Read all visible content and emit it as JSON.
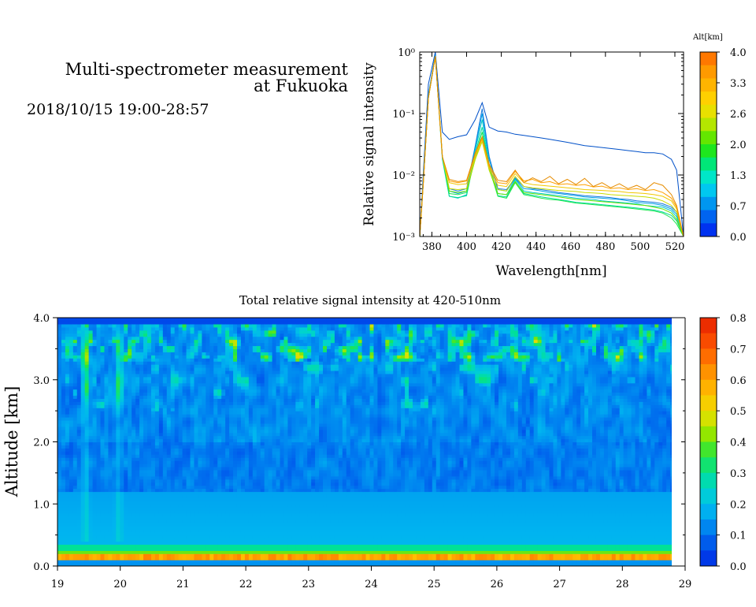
{
  "header": {
    "title_line1": "Multi-spectrometer measurement",
    "title_line2": "at Fukuoka",
    "datetime": "2018/10/15 19:00-28:57"
  },
  "chart_data": [
    {
      "type": "line",
      "xlabel": "Wavelength[nm]",
      "ylabel": "Relative signal intensity",
      "xlim": [
        373,
        525
      ],
      "ylim": [
        0.001,
        1
      ],
      "yscale": "log",
      "x_ticks": [
        "380",
        "400",
        "420",
        "440",
        "460",
        "480",
        "500",
        "520"
      ],
      "y_ticks": [
        "10⁻³",
        "10⁻²",
        "10⁻¹",
        "10⁰"
      ],
      "colorbar": {
        "title": "Alt[km]",
        "ticks": [
          "4.0",
          "3.3",
          "2.6",
          "2.0",
          "1.3",
          "0.7",
          "0.0"
        ],
        "colors": [
          "#ff7800",
          "#ff9a00",
          "#ffb400",
          "#ffd000",
          "#e8e000",
          "#b4e600",
          "#64e600",
          "#1ee61e",
          "#00e678",
          "#00e6c8",
          "#00c8f0",
          "#0096f0",
          "#0064f0",
          "#0032f0"
        ]
      },
      "x": [
        373,
        375,
        378,
        382,
        386,
        390,
        395,
        400,
        405,
        409,
        413,
        418,
        423,
        428,
        433,
        438,
        443,
        448,
        453,
        458,
        463,
        468,
        473,
        478,
        483,
        488,
        493,
        498,
        503,
        508,
        513,
        518,
        521,
        525
      ],
      "series": [
        {
          "alt": 0.15,
          "color": "#0050c8",
          "values": [
            0.001,
            0.01,
            0.3,
            1.0,
            0.05,
            0.038,
            0.042,
            0.045,
            0.08,
            0.15,
            0.06,
            0.052,
            0.05,
            0.046,
            0.044,
            0.042,
            0.04,
            0.038,
            0.036,
            0.034,
            0.032,
            0.03,
            0.029,
            0.028,
            0.027,
            0.026,
            0.025,
            0.024,
            0.023,
            0.023,
            0.022,
            0.018,
            0.012,
            0.001
          ]
        },
        {
          "alt": 0.3,
          "color": "#1478dc",
          "values": [
            0.001,
            0.008,
            0.2,
            0.9,
            0.02,
            0.006,
            0.0055,
            0.006,
            0.03,
            0.12,
            0.02,
            0.006,
            0.0058,
            0.009,
            0.0065,
            0.006,
            0.0058,
            0.0055,
            0.0052,
            0.005,
            0.0048,
            0.0046,
            0.0045,
            0.0044,
            0.0043,
            0.0041,
            0.004,
            0.0038,
            0.0037,
            0.0036,
            0.0034,
            0.003,
            0.0025,
            0.001
          ]
        },
        {
          "alt": 0.7,
          "color": "#00a0e6",
          "values": [
            0.001,
            0.008,
            0.2,
            0.9,
            0.02,
            0.0055,
            0.005,
            0.0055,
            0.028,
            0.1,
            0.018,
            0.0058,
            0.0055,
            0.0088,
            0.006,
            0.0058,
            0.0055,
            0.0052,
            0.005,
            0.0048,
            0.0046,
            0.0044,
            0.0043,
            0.0042,
            0.0041,
            0.004,
            0.0038,
            0.0036,
            0.0035,
            0.0034,
            0.0032,
            0.0028,
            0.0023,
            0.001
          ]
        },
        {
          "alt": 1.0,
          "color": "#00c8c8",
          "values": [
            0.001,
            0.007,
            0.18,
            0.85,
            0.018,
            0.0045,
            0.0042,
            0.0048,
            0.025,
            0.08,
            0.015,
            0.005,
            0.0048,
            0.0085,
            0.0055,
            0.0052,
            0.005,
            0.0048,
            0.0046,
            0.0044,
            0.0042,
            0.0041,
            0.004,
            0.0038,
            0.0037,
            0.0036,
            0.0035,
            0.0034,
            0.0032,
            0.0031,
            0.003,
            0.0026,
            0.0021,
            0.001
          ]
        },
        {
          "alt": 1.3,
          "color": "#00dc96",
          "values": [
            0.001,
            0.007,
            0.18,
            0.85,
            0.02,
            0.0045,
            0.0043,
            0.0046,
            0.022,
            0.06,
            0.014,
            0.0046,
            0.0044,
            0.008,
            0.005,
            0.0047,
            0.0044,
            0.0042,
            0.004,
            0.0038,
            0.0036,
            0.0035,
            0.0034,
            0.0033,
            0.0032,
            0.0031,
            0.003,
            0.0029,
            0.0028,
            0.0027,
            0.0025,
            0.0022,
            0.0018,
            0.001
          ]
        },
        {
          "alt": 1.7,
          "color": "#1ee650",
          "values": [
            0.001,
            0.007,
            0.18,
            0.85,
            0.02,
            0.005,
            0.0048,
            0.0052,
            0.02,
            0.05,
            0.013,
            0.0045,
            0.0042,
            0.0075,
            0.0048,
            0.0045,
            0.0042,
            0.004,
            0.0039,
            0.0037,
            0.0035,
            0.0034,
            0.0033,
            0.0032,
            0.0031,
            0.003,
            0.0029,
            0.0028,
            0.0027,
            0.0026,
            0.0024,
            0.002,
            0.0016,
            0.001
          ]
        },
        {
          "alt": 2.0,
          "color": "#64e600",
          "values": [
            0.001,
            0.007,
            0.18,
            0.85,
            0.02,
            0.0055,
            0.0052,
            0.0055,
            0.018,
            0.04,
            0.012,
            0.005,
            0.0048,
            0.0078,
            0.0052,
            0.005,
            0.0048,
            0.0046,
            0.0044,
            0.0042,
            0.004,
            0.0039,
            0.0038,
            0.0037,
            0.0036,
            0.0035,
            0.0034,
            0.0033,
            0.0032,
            0.003,
            0.0028,
            0.0024,
            0.0019,
            0.001
          ]
        },
        {
          "alt": 2.6,
          "color": "#c8dc00",
          "values": [
            0.001,
            0.007,
            0.18,
            0.85,
            0.02,
            0.006,
            0.0058,
            0.006,
            0.018,
            0.035,
            0.012,
            0.0058,
            0.0055,
            0.0095,
            0.0065,
            0.0062,
            0.006,
            0.0058,
            0.0056,
            0.0055,
            0.0054,
            0.0052,
            0.0051,
            0.005,
            0.0048,
            0.0047,
            0.0046,
            0.0045,
            0.0044,
            0.0042,
            0.0038,
            0.0032,
            0.0025,
            0.001
          ]
        },
        {
          "alt": 3.0,
          "color": "#f0c800",
          "values": [
            0.001,
            0.007,
            0.18,
            0.85,
            0.02,
            0.0075,
            0.007,
            0.0072,
            0.02,
            0.038,
            0.013,
            0.0068,
            0.0065,
            0.0105,
            0.0075,
            0.007,
            0.0068,
            0.0066,
            0.0064,
            0.0062,
            0.006,
            0.0058,
            0.0057,
            0.0056,
            0.0055,
            0.0054,
            0.0052,
            0.0051,
            0.005,
            0.0048,
            0.0045,
            0.0038,
            0.0028,
            0.001
          ]
        },
        {
          "alt": 3.3,
          "color": "#ffa000",
          "values": [
            0.001,
            0.007,
            0.18,
            0.85,
            0.02,
            0.008,
            0.0075,
            0.008,
            0.022,
            0.04,
            0.014,
            0.0075,
            0.0072,
            0.0115,
            0.008,
            0.0085,
            0.0075,
            0.0078,
            0.007,
            0.0072,
            0.0068,
            0.007,
            0.0064,
            0.0066,
            0.006,
            0.0062,
            0.0058,
            0.006,
            0.0056,
            0.0058,
            0.0052,
            0.0042,
            0.003,
            0.001
          ]
        },
        {
          "alt": 3.6,
          "color": "#e68c00",
          "values": [
            0.001,
            0.007,
            0.18,
            0.85,
            0.02,
            0.0085,
            0.0078,
            0.0082,
            0.023,
            0.042,
            0.015,
            0.0082,
            0.0078,
            0.012,
            0.0075,
            0.009,
            0.0078,
            0.0095,
            0.0072,
            0.0085,
            0.007,
            0.0088,
            0.0065,
            0.0075,
            0.0062,
            0.0072,
            0.006,
            0.0068,
            0.0058,
            0.0075,
            0.0068,
            0.0048,
            0.0032,
            0.001
          ]
        }
      ]
    },
    {
      "type": "heatmap",
      "title": "Total relative signal intensity at 420-510nm",
      "ylabel": "Altitude [km]",
      "xlabel": "",
      "xlim": [
        19,
        29
      ],
      "ylim": [
        0,
        4
      ],
      "x_ticks": [
        "19",
        "20",
        "21",
        "22",
        "23",
        "24",
        "25",
        "26",
        "27",
        "28",
        "29"
      ],
      "y_ticks": [
        "0.0",
        "1.0",
        "2.0",
        "3.0",
        "4.0"
      ],
      "colorbar": {
        "ticks": [
          "0.8",
          "0.7",
          "0.6",
          "0.5",
          "0.4",
          "0.3",
          "0.2",
          "0.1",
          "0.0"
        ],
        "range": [
          0,
          0.8
        ]
      },
      "data_end_hour": 28.95
    }
  ]
}
